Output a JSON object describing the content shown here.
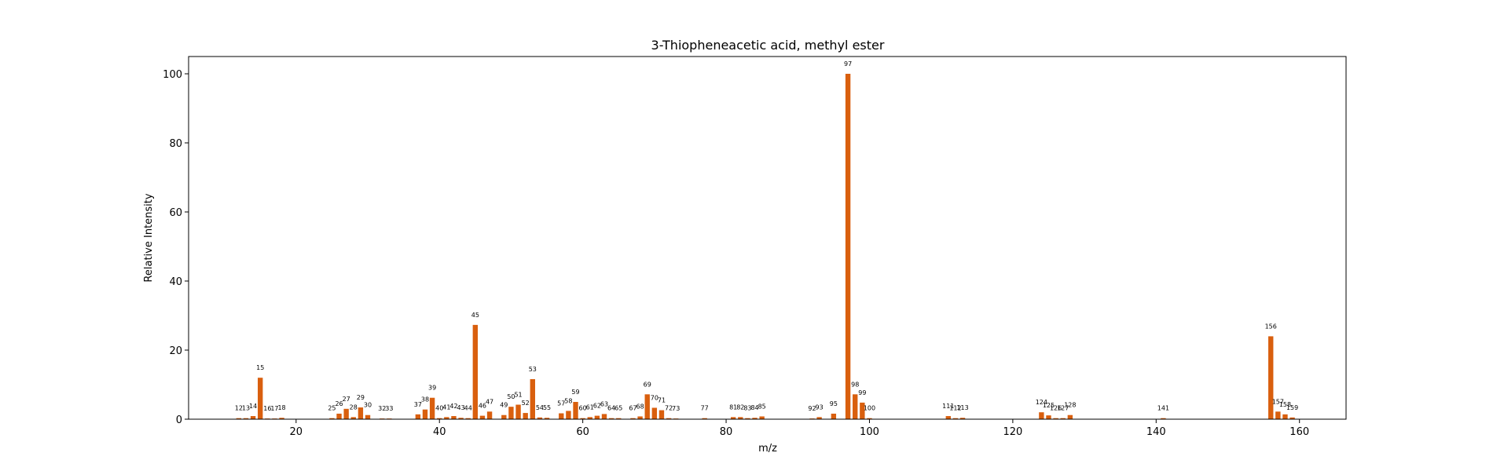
{
  "chart_data": {
    "type": "bar",
    "title": "3-Thiopheneacetic acid, methyl ester",
    "xlabel": "m/z",
    "ylabel": "Relative Intensity",
    "xlim": [
      5,
      166.5
    ],
    "ylim": [
      0,
      105
    ],
    "xticks": [
      20,
      40,
      60,
      80,
      100,
      120,
      140,
      160
    ],
    "yticks": [
      0,
      20,
      40,
      60,
      80,
      100
    ],
    "grid": false,
    "bar_color": "#d95f0e",
    "points": [
      {
        "mz": 12,
        "intensity": 0.3
      },
      {
        "mz": 13,
        "intensity": 0.3
      },
      {
        "mz": 14,
        "intensity": 0.9
      },
      {
        "mz": 15,
        "intensity": 12.0
      },
      {
        "mz": 16,
        "intensity": 0.2
      },
      {
        "mz": 17,
        "intensity": 0.2
      },
      {
        "mz": 18,
        "intensity": 0.4
      },
      {
        "mz": 25,
        "intensity": 0.3
      },
      {
        "mz": 26,
        "intensity": 1.6
      },
      {
        "mz": 27,
        "intensity": 3.0
      },
      {
        "mz": 28,
        "intensity": 0.6
      },
      {
        "mz": 29,
        "intensity": 3.4
      },
      {
        "mz": 30,
        "intensity": 1.2
      },
      {
        "mz": 32,
        "intensity": 0.2
      },
      {
        "mz": 33,
        "intensity": 0.2
      },
      {
        "mz": 37,
        "intensity": 1.4
      },
      {
        "mz": 38,
        "intensity": 2.8
      },
      {
        "mz": 39,
        "intensity": 6.2
      },
      {
        "mz": 40,
        "intensity": 0.3
      },
      {
        "mz": 41,
        "intensity": 0.6
      },
      {
        "mz": 42,
        "intensity": 0.9
      },
      {
        "mz": 43,
        "intensity": 0.4
      },
      {
        "mz": 44,
        "intensity": 0.3
      },
      {
        "mz": 45,
        "intensity": 27.3
      },
      {
        "mz": 46,
        "intensity": 1.0
      },
      {
        "mz": 47,
        "intensity": 2.2
      },
      {
        "mz": 49,
        "intensity": 1.2
      },
      {
        "mz": 50,
        "intensity": 3.6
      },
      {
        "mz": 51,
        "intensity": 4.2
      },
      {
        "mz": 52,
        "intensity": 1.8
      },
      {
        "mz": 53,
        "intensity": 11.6
      },
      {
        "mz": 54,
        "intensity": 0.5
      },
      {
        "mz": 55,
        "intensity": 0.4
      },
      {
        "mz": 57,
        "intensity": 1.7
      },
      {
        "mz": 58,
        "intensity": 2.4
      },
      {
        "mz": 59,
        "intensity": 5.0
      },
      {
        "mz": 60,
        "intensity": 0.3
      },
      {
        "mz": 61,
        "intensity": 0.6
      },
      {
        "mz": 62,
        "intensity": 1.0
      },
      {
        "mz": 63,
        "intensity": 1.5
      },
      {
        "mz": 64,
        "intensity": 0.3
      },
      {
        "mz": 65,
        "intensity": 0.3
      },
      {
        "mz": 67,
        "intensity": 0.3
      },
      {
        "mz": 68,
        "intensity": 0.8
      },
      {
        "mz": 69,
        "intensity": 7.2
      },
      {
        "mz": 70,
        "intensity": 3.3
      },
      {
        "mz": 71,
        "intensity": 2.6
      },
      {
        "mz": 72,
        "intensity": 0.3
      },
      {
        "mz": 73,
        "intensity": 0.2
      },
      {
        "mz": 77,
        "intensity": 0.3
      },
      {
        "mz": 81,
        "intensity": 0.6
      },
      {
        "mz": 82,
        "intensity": 0.6
      },
      {
        "mz": 83,
        "intensity": 0.3
      },
      {
        "mz": 84,
        "intensity": 0.4
      },
      {
        "mz": 85,
        "intensity": 0.8
      },
      {
        "mz": 92,
        "intensity": 0.2
      },
      {
        "mz": 93,
        "intensity": 0.6
      },
      {
        "mz": 95,
        "intensity": 1.6
      },
      {
        "mz": 97,
        "intensity": 100.0
      },
      {
        "mz": 98,
        "intensity": 7.2
      },
      {
        "mz": 99,
        "intensity": 4.8
      },
      {
        "mz": 100,
        "intensity": 0.3
      },
      {
        "mz": 111,
        "intensity": 0.9
      },
      {
        "mz": 112,
        "intensity": 0.3
      },
      {
        "mz": 113,
        "intensity": 0.4
      },
      {
        "mz": 124,
        "intensity": 2.0
      },
      {
        "mz": 125,
        "intensity": 1.1
      },
      {
        "mz": 126,
        "intensity": 0.3
      },
      {
        "mz": 127,
        "intensity": 0.3
      },
      {
        "mz": 128,
        "intensity": 1.2
      },
      {
        "mz": 141,
        "intensity": 0.3
      },
      {
        "mz": 156,
        "intensity": 24.0
      },
      {
        "mz": 157,
        "intensity": 2.2
      },
      {
        "mz": 158,
        "intensity": 1.4
      },
      {
        "mz": 159,
        "intensity": 0.5
      }
    ]
  }
}
